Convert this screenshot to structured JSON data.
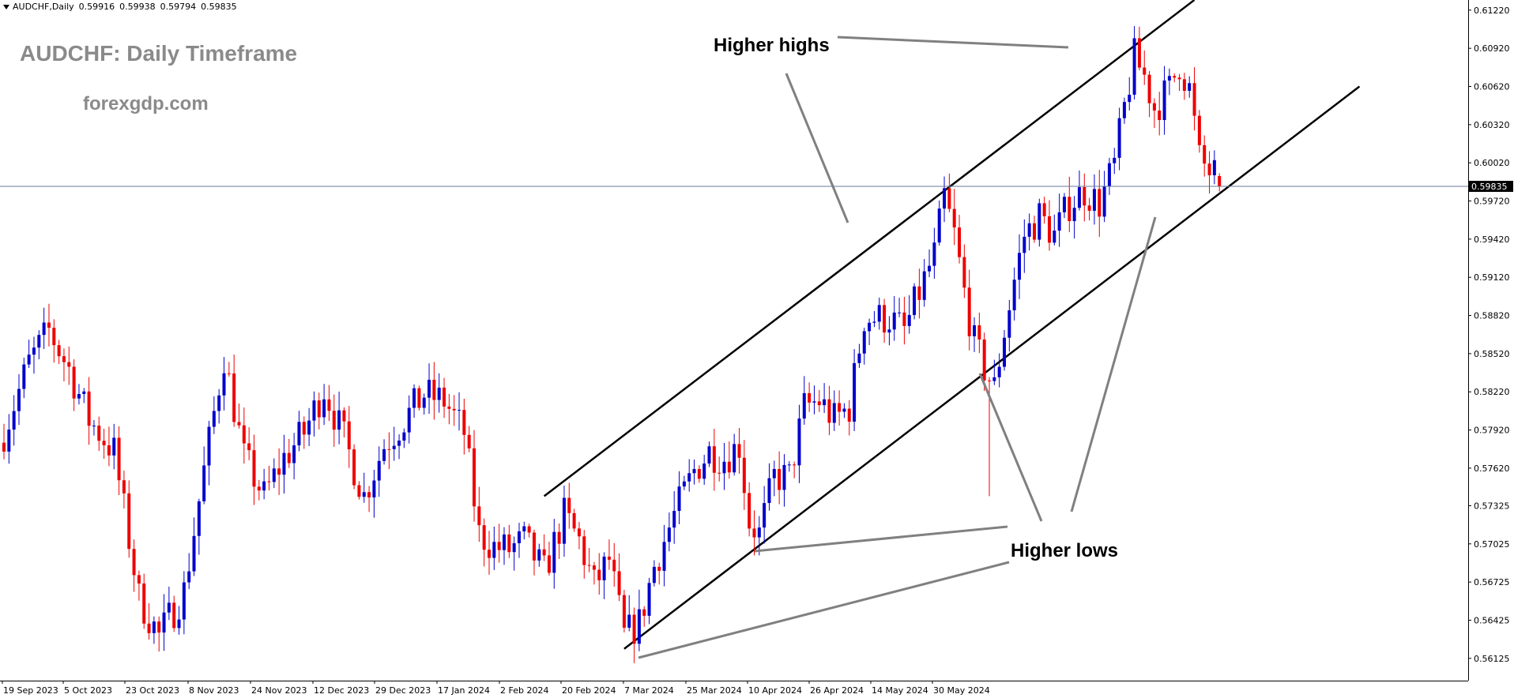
{
  "header": {
    "symbol": "AUDCHF,Daily",
    "values": [
      "0.59916",
      "0.59938",
      "0.59794",
      "0.59835"
    ]
  },
  "overlay": {
    "title": "AUDCHF: Daily Timeframe",
    "site": "forexgdp.com",
    "annotation_highs": "Higher highs",
    "annotation_lows": "Higher lows"
  },
  "chart_data": {
    "type": "candlestick",
    "title": "AUDCHF: Daily Timeframe",
    "symbol": "AUDCHF",
    "timeframe": "Daily",
    "ohlc_last": {
      "open": 0.59916,
      "high": 0.59938,
      "low": 0.59794,
      "close": 0.59835
    },
    "current_price": 0.59835,
    "current_price_label": "0.59835",
    "ylim": [
      0.5595,
      0.6125
    ],
    "y_ticks": [
      "0.61220",
      "0.60920",
      "0.60620",
      "0.60320",
      "0.60020",
      "0.59720",
      "0.59420",
      "0.59120",
      "0.58820",
      "0.58520",
      "0.58220",
      "0.57920",
      "0.57620",
      "0.57325",
      "0.57025",
      "0.56725",
      "0.56425",
      "0.56125"
    ],
    "x_ticks": [
      "19 Sep 2023",
      "5 Oct 2023",
      "23 Oct 2023",
      "8 Nov 2023",
      "24 Nov 2023",
      "12 Dec 2023",
      "29 Dec 2023",
      "17 Jan 2024",
      "2 Feb 2024",
      "20 Feb 2024",
      "7 Mar 2024",
      "25 Mar 2024",
      "10 Apr 2024",
      "26 Apr 2024",
      "14 May 2024",
      "30 May 2024"
    ],
    "bull_color": "#0000cc",
    "bear_color": "#ee0000",
    "channel": {
      "upper": [
        {
          "bar": 108,
          "price": 0.574
        },
        {
          "bar": 238,
          "price": 0.613
        }
      ],
      "lower": [
        {
          "bar": 124,
          "price": 0.562
        },
        {
          "bar": 271,
          "price": 0.6062
        }
      ]
    },
    "close_path": [
      {
        "bar": 0,
        "close": 0.579
      },
      {
        "bar": 5,
        "close": 0.5845
      },
      {
        "bar": 9,
        "close": 0.587
      },
      {
        "bar": 13,
        "close": 0.584
      },
      {
        "bar": 17,
        "close": 0.58
      },
      {
        "bar": 22,
        "close": 0.5775
      },
      {
        "bar": 27,
        "close": 0.566
      },
      {
        "bar": 31,
        "close": 0.563
      },
      {
        "bar": 36,
        "close": 0.5665
      },
      {
        "bar": 40,
        "close": 0.576
      },
      {
        "bar": 44,
        "close": 0.585
      },
      {
        "bar": 48,
        "close": 0.577
      },
      {
        "bar": 52,
        "close": 0.574
      },
      {
        "bar": 56,
        "close": 0.577
      },
      {
        "bar": 60,
        "close": 0.579
      },
      {
        "bar": 64,
        "close": 0.5825
      },
      {
        "bar": 68,
        "close": 0.5785
      },
      {
        "bar": 72,
        "close": 0.574
      },
      {
        "bar": 76,
        "close": 0.578
      },
      {
        "bar": 80,
        "close": 0.58
      },
      {
        "bar": 84,
        "close": 0.582
      },
      {
        "bar": 88,
        "close": 0.5815
      },
      {
        "bar": 92,
        "close": 0.579
      },
      {
        "bar": 95,
        "close": 0.571
      },
      {
        "bar": 98,
        "close": 0.57
      },
      {
        "bar": 101,
        "close": 0.5698
      },
      {
        "bar": 104,
        "close": 0.5705
      },
      {
        "bar": 108,
        "close": 0.568
      },
      {
        "bar": 112,
        "close": 0.5725
      },
      {
        "bar": 115,
        "close": 0.5705
      },
      {
        "bar": 118,
        "close": 0.567
      },
      {
        "bar": 121,
        "close": 0.569
      },
      {
        "bar": 124,
        "close": 0.563
      },
      {
        "bar": 127,
        "close": 0.564
      },
      {
        "bar": 130,
        "close": 0.5685
      },
      {
        "bar": 134,
        "close": 0.5725
      },
      {
        "bar": 138,
        "close": 0.576
      },
      {
        "bar": 141,
        "close": 0.5775
      },
      {
        "bar": 144,
        "close": 0.577
      },
      {
        "bar": 147,
        "close": 0.578
      },
      {
        "bar": 149,
        "close": 0.572
      },
      {
        "bar": 151,
        "close": 0.571
      },
      {
        "bar": 154,
        "close": 0.5755
      },
      {
        "bar": 157,
        "close": 0.5755
      },
      {
        "bar": 160,
        "close": 0.581
      },
      {
        "bar": 163,
        "close": 0.5815
      },
      {
        "bar": 166,
        "close": 0.58
      },
      {
        "bar": 169,
        "close": 0.581
      },
      {
        "bar": 172,
        "close": 0.588
      },
      {
        "bar": 174,
        "close": 0.588
      },
      {
        "bar": 177,
        "close": 0.588
      },
      {
        "bar": 180,
        "close": 0.587
      },
      {
        "bar": 183,
        "close": 0.59
      },
      {
        "bar": 186,
        "close": 0.593
      },
      {
        "bar": 188,
        "close": 0.5975
      },
      {
        "bar": 190,
        "close": 0.5945
      },
      {
        "bar": 192,
        "close": 0.59
      },
      {
        "bar": 194,
        "close": 0.586
      },
      {
        "bar": 196,
        "close": 0.584
      },
      {
        "bar": 198,
        "close": 0.5825
      },
      {
        "bar": 200,
        "close": 0.587
      },
      {
        "bar": 202,
        "close": 0.591
      },
      {
        "bar": 204,
        "close": 0.5945
      },
      {
        "bar": 207,
        "close": 0.596
      },
      {
        "bar": 210,
        "close": 0.5945
      },
      {
        "bar": 213,
        "close": 0.597
      },
      {
        "bar": 216,
        "close": 0.598
      },
      {
        "bar": 219,
        "close": 0.597
      },
      {
        "bar": 222,
        "close": 0.6
      },
      {
        "bar": 224,
        "close": 0.6045
      },
      {
        "bar": 226,
        "close": 0.6085
      },
      {
        "bar": 228,
        "close": 0.607
      },
      {
        "bar": 230,
        "close": 0.6045
      },
      {
        "bar": 233,
        "close": 0.606
      },
      {
        "bar": 235,
        "close": 0.608
      },
      {
        "bar": 237,
        "close": 0.606
      },
      {
        "bar": 239,
        "close": 0.6005
      },
      {
        "bar": 241,
        "close": 0.5995
      },
      {
        "bar": 243,
        "close": 0.5992
      }
    ]
  }
}
